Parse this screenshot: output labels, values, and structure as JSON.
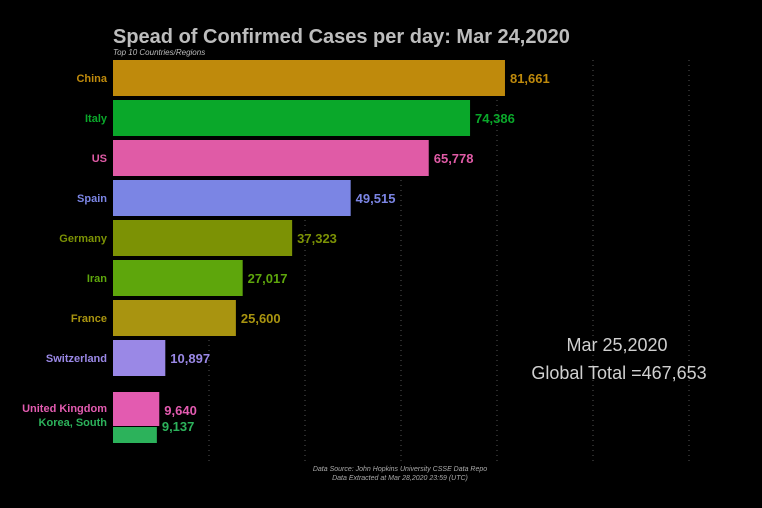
{
  "chart_data": {
    "type": "bar",
    "title": "Spead of Confirmed Cases per day: Mar 24,2020",
    "subtitle": "Top 10 Countries/Regions",
    "categories": [
      "China",
      "Italy",
      "US",
      "Spain",
      "Germany",
      "Iran",
      "France",
      "Switzerland",
      "United Kingdom",
      "Korea, South"
    ],
    "values": [
      81661,
      74386,
      65778,
      49515,
      37323,
      27017,
      25600,
      10897,
      9640,
      9137
    ],
    "value_labels": [
      "81,661",
      "74,386",
      "65,778",
      "49,515",
      "37,323",
      "27,017",
      "25,600",
      "10,897",
      "9,640",
      "9,137"
    ],
    "colors": [
      "#bf8a0c",
      "#0aa82a",
      "#e05ba6",
      "#7b85e4",
      "#7c9205",
      "#5ea60c",
      "#a99410",
      "#9a88e6",
      "#e35bb0",
      "#2cb25b"
    ],
    "xlim": [
      0,
      100000
    ],
    "orientation": "horizontal",
    "grid": true,
    "date_label": "Mar 25,2020",
    "total_label": "Global Total =467,653",
    "source_line1": "Data Source: John Hopkins University CSSE Data Repo",
    "source_line2": "Data Extracted at Mar 28,2020 23:59 (UTC)"
  }
}
